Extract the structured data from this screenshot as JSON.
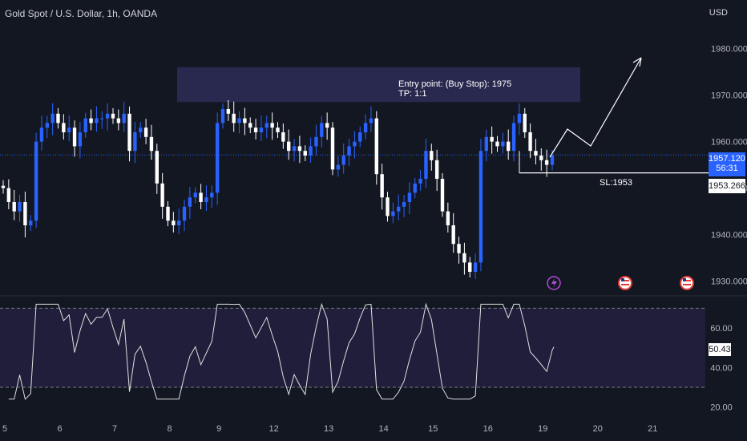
{
  "header": {
    "title": "Gold Spot / U.S. Dollar, 1h, OANDA",
    "currency": "USD"
  },
  "annotations": {
    "entry_line1": "Entry point: (Buy Stop): 1975",
    "entry_line2": "TP: 1:1",
    "stop_loss": "SL:1953"
  },
  "tags": {
    "current_price": "1957.120",
    "countdown": "56:31",
    "stop_price": "1953.266",
    "rsi_value": "50.43"
  },
  "colors": {
    "background": "#131722",
    "bull": "#2962ff",
    "bear": "#ffffff",
    "zone": "#2a2a52",
    "rsi_band": "#201e3a",
    "grid_text": "#b2b5be"
  },
  "chart_data": [
    {
      "type": "candlestick",
      "title": "Gold Spot / U.S. Dollar, 1h, OANDA",
      "ylim": [
        1927,
        1987
      ],
      "y_ticks": [
        1930,
        1940,
        1950,
        1960,
        1970,
        1980
      ],
      "y_tick_labels": [
        "1930.000",
        "1940.000",
        "1950.000",
        "1960.000",
        "1970.000",
        "1980.000"
      ],
      "x_tick_labels": [
        "5",
        "6",
        "7",
        "8",
        "9",
        "12",
        "13",
        "14",
        "15",
        "16",
        "19",
        "20",
        "21"
      ],
      "x_tick_index": [
        0,
        10,
        20,
        30,
        39,
        49,
        59,
        69,
        78,
        88,
        98,
        108,
        118
      ],
      "closes": [
        1950,
        1947,
        1945,
        1947,
        1942,
        1943,
        1960,
        1963,
        1964,
        1966,
        1964,
        1962,
        1963,
        1959,
        1962,
        1965,
        1964,
        1965,
        1965,
        1966,
        1965,
        1964,
        1966,
        1958,
        1962,
        1963,
        1961,
        1958,
        1951,
        1946,
        1943,
        1942,
        1943,
        1946,
        1948,
        1949,
        1947,
        1948,
        1949,
        1964,
        1967,
        1966,
        1964,
        1965,
        1964,
        1963,
        1962,
        1963,
        1964,
        1963,
        1962,
        1960,
        1958,
        1959,
        1958,
        1957,
        1959,
        1961,
        1964,
        1963,
        1954,
        1955,
        1957,
        1959,
        1960,
        1962,
        1964,
        1965,
        1953,
        1948,
        1944,
        1945,
        1946,
        1947,
        1949,
        1951,
        1952,
        1958,
        1956,
        1952,
        1945,
        1942,
        1938,
        1936,
        1934,
        1932,
        1934,
        1958,
        1961,
        1960,
        1959,
        1960,
        1958,
        1964,
        1966,
        1962,
        1958,
        1957,
        1956,
        1955,
        1957
      ],
      "legend": ""
    },
    {
      "type": "line",
      "ylim": [
        15,
        75
      ],
      "y_ticks": [
        20,
        40,
        60
      ],
      "y_tick_labels": [
        "20.00",
        "40.00",
        "60.00"
      ],
      "overbought": 70,
      "oversold": 30,
      "last_value": 50.43
    }
  ]
}
